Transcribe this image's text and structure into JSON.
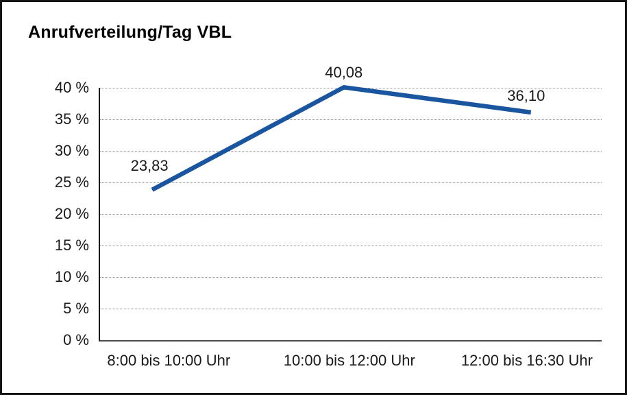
{
  "chart_data": {
    "type": "line",
    "title": "Anrufverteilung/Tag VBL",
    "categories": [
      "8:00 bis 10:00 Uhr",
      "10:00 bis 12:00 Uhr",
      "12:00 bis 16:30 Uhr"
    ],
    "values": [
      23.83,
      40.08,
      36.1
    ],
    "value_labels": [
      "23,83",
      "40,08",
      "36,10"
    ],
    "y_ticks": [
      "0 %",
      "5 %",
      "10 %",
      "15 %",
      "20 %",
      "25 %",
      "30 %",
      "35 %",
      "40 %"
    ],
    "ylim": [
      0,
      40
    ],
    "y_step": 5,
    "xlabel": "",
    "ylabel": "",
    "grid": "horizontal-dotted",
    "legend": "none",
    "line_color": "#1A55A0",
    "axis_color": "#1a1a1a",
    "baseline_color": "#4a4a4a",
    "gridline_color": "#8f8f8f",
    "text_color": "#1a1a1a"
  }
}
